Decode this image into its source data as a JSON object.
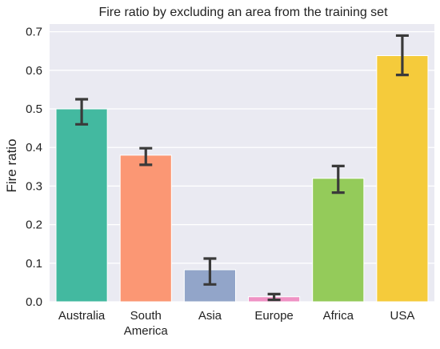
{
  "chart_data": {
    "type": "bar",
    "title": "Fire ratio by excluding an area from the training set",
    "xlabel": "",
    "ylabel": "Fire ratio",
    "categories": [
      "Australia",
      "South America",
      "Asia",
      "Europe",
      "Africa",
      "USA"
    ],
    "category_lines": [
      [
        "Australia"
      ],
      [
        "South",
        "America"
      ],
      [
        "Asia"
      ],
      [
        "Europe"
      ],
      [
        "Africa"
      ],
      [
        "USA"
      ]
    ],
    "values": [
      0.5,
      0.38,
      0.083,
      0.013,
      0.32,
      0.638
    ],
    "error_low": [
      0.46,
      0.355,
      0.045,
      0.005,
      0.283,
      0.588
    ],
    "error_high": [
      0.525,
      0.398,
      0.112,
      0.02,
      0.352,
      0.69
    ],
    "colors": [
      "#43b9a0",
      "#fb9774",
      "#92a5c9",
      "#ef92c4",
      "#94cb5a",
      "#f5cb3b"
    ],
    "ylim": [
      0,
      0.72
    ],
    "yticks": [
      0.0,
      0.1,
      0.2,
      0.3,
      0.4,
      0.5,
      0.6,
      0.7
    ],
    "ytick_labels": [
      "0.0",
      "0.1",
      "0.2",
      "0.3",
      "0.4",
      "0.5",
      "0.6",
      "0.7"
    ],
    "grid": true,
    "background": "#eaeaf2"
  }
}
